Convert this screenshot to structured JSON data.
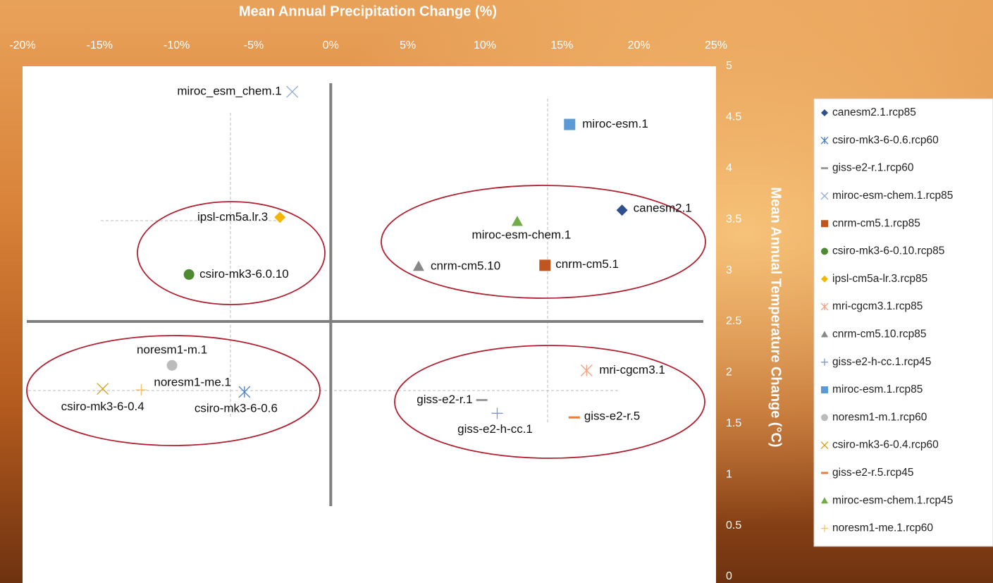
{
  "chart_data": {
    "type": "scatter",
    "title": "Mean Annual Precipitation Change (%)",
    "y_label": "Mean Annual Temperature Change (°C)",
    "xlim": [
      -20,
      25
    ],
    "xticks": [
      {
        "value": -20,
        "label": "-20%"
      },
      {
        "value": -15,
        "label": "-15%"
      },
      {
        "value": -10,
        "label": "-10%"
      },
      {
        "value": -5,
        "label": "-5%"
      },
      {
        "value": 0,
        "label": "0%"
      },
      {
        "value": 5,
        "label": "5%"
      },
      {
        "value": 10,
        "label": "10%"
      },
      {
        "value": 15,
        "label": "15%"
      },
      {
        "value": 20,
        "label": "20%"
      },
      {
        "value": 25,
        "label": "25%"
      }
    ],
    "ylim": [
      0,
      5
    ],
    "yticks": [
      0,
      0.5,
      1,
      1.5,
      2,
      2.5,
      3,
      3.5,
      4,
      4.5,
      5
    ],
    "quadrant_lines": {
      "x": 0,
      "y": 2.5
    },
    "series": [
      {
        "name": "canesm2.1.rcp85",
        "label": "canesm2.1",
        "color": "#2f4f8f",
        "marker": "diamond",
        "x": [
          18.9
        ],
        "y": [
          3.59
        ]
      },
      {
        "name": "csiro-mk3-6-0.6.rcp60",
        "label": "csiro-mk3-6-0.6",
        "color": "#4a7fc0",
        "marker": "asterisk",
        "x": [
          -5.6
        ],
        "y": [
          1.81
        ]
      },
      {
        "name": "giss-e2-r.1.rcp60",
        "label": "giss-e2-r.1",
        "color": "#9a9a9a",
        "marker": "dash",
        "x": [
          9.8
        ],
        "y": [
          1.73
        ]
      },
      {
        "name": "miroc-esm-chem.1.rcp85",
        "label": "miroc_esm_chem.1",
        "color": "#8fa8d8",
        "marker": "x",
        "x": [
          -2.5
        ],
        "y": [
          4.75
        ]
      },
      {
        "name": "cnrm-cm5.1.rcp85",
        "label": "cnrm-cm5.1",
        "color": "#c0561f",
        "marker": "square",
        "x": [
          13.9
        ],
        "y": [
          3.05
        ]
      },
      {
        "name": "csiro-mk3-6-0.10.rcp85",
        "label": "csiro-mk3-6.0.10",
        "color": "#4e8a30",
        "marker": "circle",
        "x": [
          -9.2
        ],
        "y": [
          2.96
        ]
      },
      {
        "name": "ipsl-cm5a-lr.3.rcp85",
        "label": "ipsl-cm5a.lr.3",
        "color": "#f2b705",
        "marker": "diamond",
        "x": [
          -3.3
        ],
        "y": [
          3.52
        ]
      },
      {
        "name": "mri-cgcm3.1.rcp85",
        "label": "mri-cgcm3.1",
        "color": "#f0a080",
        "marker": "asterisk",
        "x": [
          16.6
        ],
        "y": [
          2.02
        ]
      },
      {
        "name": "cnrm-cm5.10.rcp85",
        "label": "cnrm-cm5.10",
        "color": "#888888",
        "marker": "triangle",
        "x": [
          5.7
        ],
        "y": [
          3.04
        ]
      },
      {
        "name": "giss-e2-h-cc.1.rcp45",
        "label": "giss-e2-h-cc.1",
        "color": "#7f97d0",
        "marker": "plus",
        "x": [
          10.8
        ],
        "y": [
          1.6
        ]
      },
      {
        "name": "miroc-esm.1.rcp85",
        "label": "miroc-esm.1",
        "color": "#5b9bd5",
        "marker": "square",
        "x": [
          15.5
        ],
        "y": [
          4.43
        ]
      },
      {
        "name": "noresm1-m.1.rcp60",
        "label": "noresm1-m.1",
        "color": "#bbbbbb",
        "marker": "circle",
        "x": [
          -10.3
        ],
        "y": [
          2.07
        ]
      },
      {
        "name": "csiro-mk3-6-0.4.rcp60",
        "label": "csiro-mk3-6-0.4",
        "color": "#d4a017",
        "marker": "x",
        "x": [
          -14.8
        ],
        "y": [
          1.84
        ]
      },
      {
        "name": "giss-e2-r.5.rcp45",
        "label": "giss-e2-r.5",
        "color": "#ed7d31",
        "marker": "dash",
        "x": [
          15.8
        ],
        "y": [
          1.56
        ]
      },
      {
        "name": "miroc-esm-chem.1.rcp45",
        "label": "miroc-esm-chem.1",
        "color": "#70ad47",
        "marker": "triangle",
        "x": [
          12.1
        ],
        "y": [
          3.48
        ]
      },
      {
        "name": "noresm1-me.1.rcp60",
        "label": "noresm1-me.1",
        "color": "#f5c26b",
        "marker": "plus",
        "x": [
          -12.3
        ],
        "y": [
          1.83
        ]
      }
    ]
  }
}
